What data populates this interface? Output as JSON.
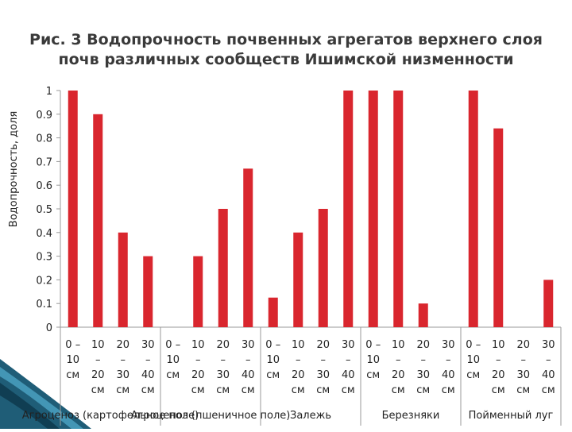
{
  "chart_data": {
    "type": "bar",
    "title_line1": "Рис. 3 Водопрочность почвенных агрегатов верхнего слоя",
    "title_line2": "почв различных сообществ Ишимской низменности",
    "ylabel": "Водопрочность, доля",
    "ylim": [
      0,
      1
    ],
    "yticks": [
      "0",
      "0.1",
      "0.2",
      "0.3",
      "0.4",
      "0.5",
      "0.6",
      "0.7",
      "0.8",
      "0.9",
      "1"
    ],
    "bar_color": "#d9262e",
    "grid": false,
    "categories": [
      [
        "0 –",
        "10",
        "см"
      ],
      [
        "10",
        "–",
        "20",
        "см"
      ],
      [
        "20",
        "–",
        "30",
        "см"
      ],
      [
        "30",
        "–",
        "40",
        "см"
      ],
      [
        "0 –",
        "10",
        "см"
      ],
      [
        "10",
        "–",
        "20",
        "см"
      ],
      [
        "20",
        "–",
        "30",
        "см"
      ],
      [
        "30",
        "–",
        "40",
        "см"
      ],
      [
        "0 –",
        "10",
        "см"
      ],
      [
        "10",
        "–",
        "20",
        "см"
      ],
      [
        "20",
        "–",
        "30",
        "см"
      ],
      [
        "30",
        "–",
        "40",
        "см"
      ],
      [
        "0 –",
        "10",
        "см"
      ],
      [
        "10",
        "–",
        "20",
        "см"
      ],
      [
        "20",
        "–",
        "30",
        "см"
      ],
      [
        "30",
        "–",
        "40",
        "см"
      ],
      [
        "0 –",
        "10",
        "см"
      ],
      [
        "10",
        "–",
        "20",
        "см"
      ],
      [
        "20",
        "–",
        "30",
        "см"
      ],
      [
        "30",
        "–",
        "40",
        "см"
      ]
    ],
    "values": [
      1.0,
      0.9,
      0.4,
      0.3,
      0,
      0.3,
      0.5,
      0.67,
      0.125,
      0.4,
      0.5,
      1.0,
      1.0,
      1.0,
      0.1,
      0,
      1.0,
      0.84,
      0,
      0.2
    ],
    "groups": [
      "Агроценоз (картофельное поле)",
      "Агроценоз (пшеничное поле)",
      "Залежь",
      "Березняки",
      "Пойменный луг"
    ]
  }
}
